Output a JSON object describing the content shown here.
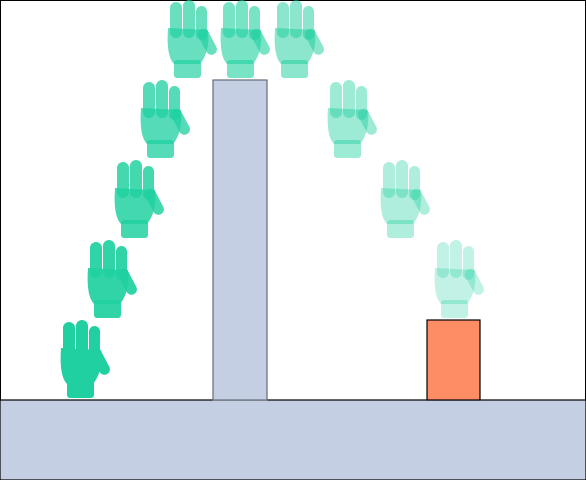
{
  "scene": {
    "background": "#ffffff",
    "border_color": "#000000",
    "ground": {
      "fill": "#c5cfe3",
      "stroke": "#000000"
    },
    "obstacle": {
      "fill": "#c5cfe3",
      "stroke": "#666b78"
    },
    "target": {
      "fill": "#fe8c64",
      "stroke": "#000000"
    },
    "hand": {
      "icon": "hand-glove-icon",
      "color": "#20d0a0",
      "trajectory_steps": 11,
      "opacity_start": 1.0,
      "opacity_end": 0.28
    }
  }
}
